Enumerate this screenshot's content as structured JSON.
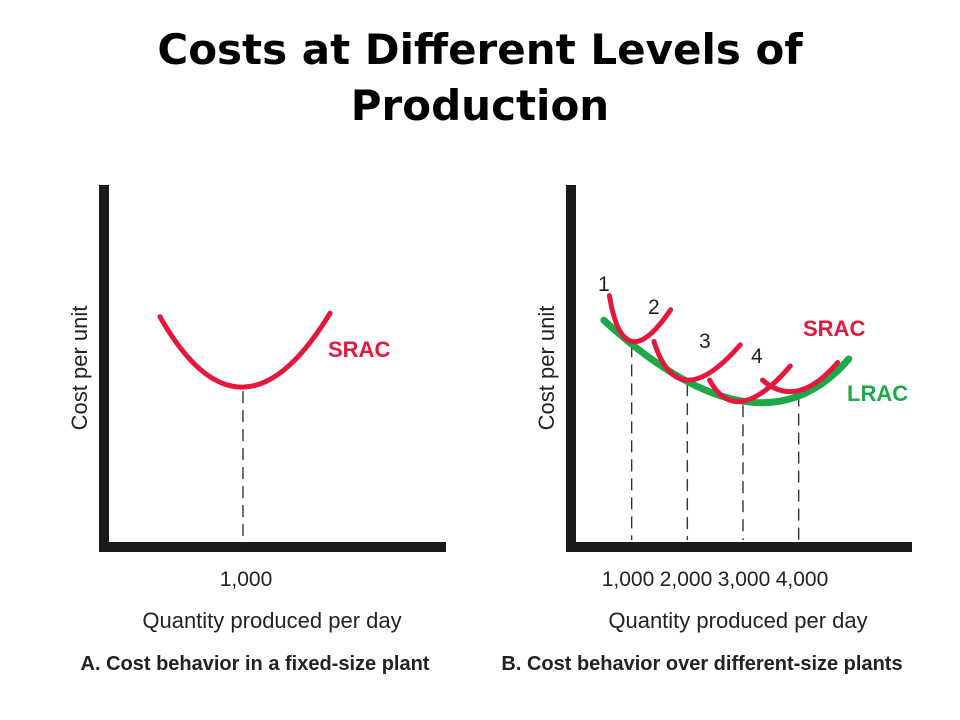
{
  "page": {
    "title_line1": "Costs at Different Levels of",
    "title_line2": "Production"
  },
  "colors": {
    "srac": "#e3183c",
    "lrac": "#1fa84a",
    "axis": "#1a1a1a",
    "text": "#222222"
  },
  "chart_data": [
    {
      "type": "line",
      "caption": "A. Cost behavior in a fixed-size plant",
      "xlabel": "Quantity produced per day",
      "ylabel": "Cost per unit",
      "x_ticks": [
        "1,000"
      ],
      "xlim": [
        0,
        2500
      ],
      "ylim": [
        0,
        10
      ],
      "grid": false,
      "series": [
        {
          "name": "SRAC",
          "x": [
            0,
            1000,
            1000
          ],
          "y": [
            0,
            0,
            0
          ],
          "points": [
            [
              380,
              6.4
            ],
            [
              1000,
              4.4
            ],
            [
              1650,
              6.5
            ]
          ]
        }
      ],
      "guides": [
        {
          "x": 1000,
          "y_from": 0,
          "y_to": 4.4
        }
      ]
    },
    {
      "type": "line",
      "caption": "B. Cost behavior over different-size plants",
      "xlabel": "Quantity produced per day",
      "ylabel": "Cost per unit",
      "x_ticks": [
        "1,000",
        "2,000",
        "3,000",
        "4,000"
      ],
      "xlim": [
        0,
        6000
      ],
      "ylim": [
        0,
        10
      ],
      "grid": false,
      "plant_numbers": [
        "1",
        "2",
        "3",
        "4"
      ],
      "series": [
        {
          "name": "SRAC",
          "curves": [
            {
              "points": [
                [
                  600,
                  7.0
                ],
                [
                  1000,
                  5.7
                ],
                [
                  1700,
                  6.6
                ]
              ]
            },
            {
              "points": [
                [
                  1400,
                  5.7
                ],
                [
                  2000,
                  4.6
                ],
                [
                  2950,
                  5.6
                ]
              ]
            },
            {
              "points": [
                [
                  2400,
                  4.6
                ],
                [
                  3000,
                  4.0
                ],
                [
                  3850,
                  5.0
                ]
              ]
            },
            {
              "points": [
                [
                  3350,
                  4.6
                ],
                [
                  4000,
                  4.3
                ],
                [
                  4700,
                  5.1
                ]
              ]
            }
          ]
        },
        {
          "name": "LRAC",
          "points": [
            [
              500,
              6.3
            ],
            [
              3000,
              4.0
            ],
            [
              4900,
              5.2
            ]
          ]
        }
      ],
      "guides": [
        {
          "x": 1000,
          "y_from": 0,
          "y_to": 5.7
        },
        {
          "x": 2000,
          "y_from": 0,
          "y_to": 4.6
        },
        {
          "x": 3000,
          "y_from": 0,
          "y_to": 4.0
        },
        {
          "x": 4000,
          "y_from": 0,
          "y_to": 4.3
        }
      ]
    }
  ]
}
